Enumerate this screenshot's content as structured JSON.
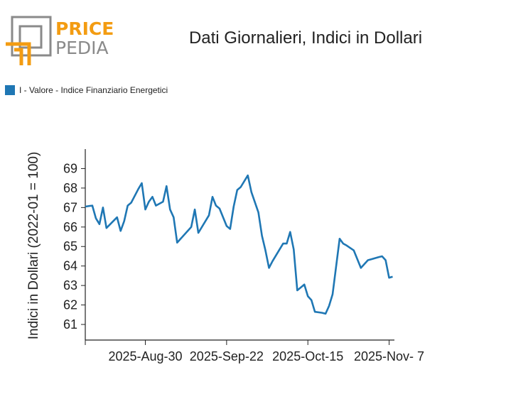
{
  "logo": {
    "word1": "PRICE",
    "word2": "PEDIA"
  },
  "chart_data": {
    "type": "line",
    "title": "Dati Giornalieri, Indici in Dollari",
    "ylabel": "Indici in Dollari (2022-01 = 100)",
    "xlabel": "",
    "ylim": [
      60.2,
      70.0
    ],
    "yticks": [
      61,
      62,
      63,
      64,
      65,
      66,
      67,
      68,
      69
    ],
    "xtick_labels": [
      "2025-Aug-30",
      "2025-Sep-22",
      "2025-Oct-15",
      "2025-Nov- 7"
    ],
    "xtick_positions": [
      17,
      40,
      63,
      86
    ],
    "xlim": [
      0,
      87.5
    ],
    "legend_position": "top-left",
    "colors": {
      "series": "#1f77b4"
    },
    "series": [
      {
        "name": "I - Valore - Indice Finanziario Energetici",
        "x": [
          0,
          2,
          3,
          4,
          5,
          6,
          9,
          10,
          11,
          12,
          13,
          15,
          16,
          17,
          18,
          19,
          20,
          22,
          23,
          24,
          25,
          26,
          27,
          30,
          31,
          32,
          35,
          36,
          37,
          38,
          40,
          41,
          42,
          43,
          44,
          46,
          47,
          49,
          50,
          51,
          52,
          53,
          56,
          57,
          58,
          59,
          60,
          61,
          62,
          63,
          64,
          65,
          67,
          68,
          69,
          70,
          72,
          73,
          74,
          76,
          78,
          80,
          81,
          83,
          84,
          85,
          86,
          87
        ],
        "y": [
          67.05,
          67.1,
          66.45,
          66.15,
          67.0,
          65.95,
          66.5,
          65.8,
          66.3,
          67.1,
          67.25,
          67.95,
          68.25,
          66.9,
          67.3,
          67.55,
          67.1,
          67.3,
          68.1,
          66.9,
          66.5,
          65.2,
          65.4,
          66.0,
          66.9,
          65.7,
          66.6,
          67.55,
          67.1,
          66.95,
          66.05,
          65.9,
          67.05,
          67.9,
          68.05,
          68.65,
          67.8,
          66.75,
          65.55,
          64.8,
          63.9,
          64.25,
          65.15,
          65.15,
          65.75,
          64.85,
          62.75,
          62.9,
          63.05,
          62.45,
          62.25,
          61.65,
          61.6,
          61.55,
          61.95,
          62.55,
          65.4,
          65.15,
          65.05,
          64.8,
          63.9,
          64.3,
          64.35,
          64.45,
          64.5,
          64.3,
          63.4,
          63.45
        ]
      }
    ]
  }
}
